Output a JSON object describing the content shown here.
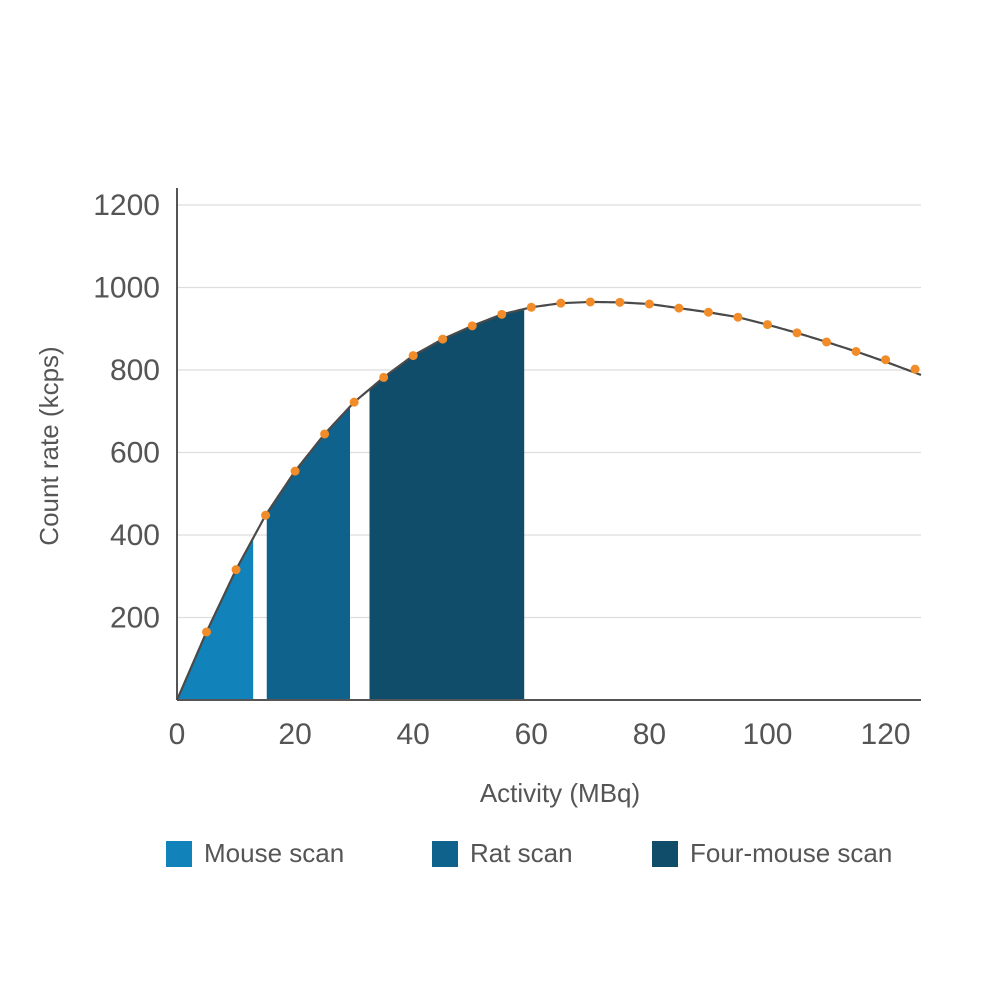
{
  "chart_data": {
    "type": "area",
    "title": "",
    "xlabel": "Activity (MBq)",
    "ylabel": "Count rate (kcps)",
    "xlim": [
      0,
      126
    ],
    "ylim": [
      0,
      1200
    ],
    "x_ticks": [
      0,
      20,
      40,
      60,
      80,
      100,
      120
    ],
    "y_ticks": [
      200,
      400,
      600,
      800,
      1000,
      1200
    ],
    "grid": "horizontal",
    "legend_position": "bottom",
    "curve": {
      "x": [
        0,
        5,
        10,
        15,
        20,
        25,
        30,
        35,
        40,
        45,
        50,
        55,
        60,
        65,
        70,
        75,
        80,
        85,
        90,
        95,
        100,
        105,
        110,
        115,
        120,
        126
      ],
      "y": [
        0,
        165,
        316,
        448,
        555,
        645,
        722,
        782,
        835,
        875,
        907,
        935,
        952,
        962,
        965,
        964,
        960,
        950,
        940,
        928,
        910,
        890,
        868,
        845,
        820,
        788
      ],
      "color": "#4a4a4a"
    },
    "points": {
      "x": [
        5,
        10,
        15,
        20,
        25,
        30,
        35,
        40,
        45,
        50,
        55,
        60,
        65,
        70,
        75,
        80,
        85,
        90,
        95,
        100,
        105,
        110,
        115,
        120,
        125
      ],
      "y": [
        165,
        316,
        448,
        555,
        645,
        722,
        782,
        835,
        875,
        907,
        935,
        952,
        962,
        965,
        964,
        960,
        950,
        940,
        928,
        910,
        890,
        868,
        845,
        825,
        802
      ],
      "color": "#f28c28"
    },
    "series": [
      {
        "name": "Mouse scan",
        "x_range": [
          0,
          12.9
        ],
        "color": "#1183ba"
      },
      {
        "name": "Rat scan",
        "x_range": [
          15.2,
          29.3
        ],
        "color": "#0e628c"
      },
      {
        "name": "Four-mouse scan",
        "x_range": [
          32.6,
          58.8
        ],
        "color": "#104d6a"
      }
    ]
  }
}
